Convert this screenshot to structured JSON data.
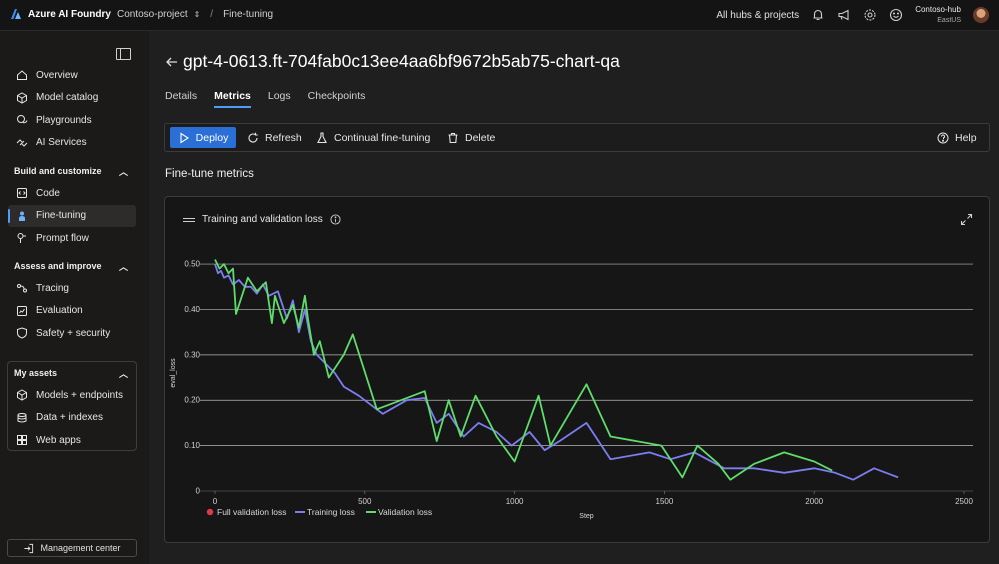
{
  "app": {
    "brand": "Azure AI Foundry",
    "breadcrumb_project": "Contoso-project",
    "breadcrumb_page": "Fine-tuning",
    "all_hubs": "All hubs & projects",
    "hub_name": "Contoso-hub",
    "hub_region": "EastUS"
  },
  "sidebar": {
    "top_items": [
      {
        "label": "Overview",
        "icon": "home-icon"
      },
      {
        "label": "Model catalog",
        "icon": "cube-icon"
      },
      {
        "label": "Playgrounds",
        "icon": "chat-icon"
      },
      {
        "label": "AI Services",
        "icon": "link-icon"
      }
    ],
    "section_build": "Build and customize",
    "build_items": [
      {
        "label": "Code",
        "icon": "code-icon"
      },
      {
        "label": "Fine-tuning",
        "icon": "person-icon",
        "active": true
      },
      {
        "label": "Prompt flow",
        "icon": "flow-icon"
      }
    ],
    "section_assess": "Assess and improve",
    "assess_items": [
      {
        "label": "Tracing",
        "icon": "tracing-icon"
      },
      {
        "label": "Evaluation",
        "icon": "evaluation-icon"
      },
      {
        "label": "Safety + security",
        "icon": "shield-icon"
      }
    ],
    "section_assets": "My assets",
    "asset_items": [
      {
        "label": "Models + endpoints",
        "icon": "cube-icon"
      },
      {
        "label": "Data + indexes",
        "icon": "database-icon"
      },
      {
        "label": "Web apps",
        "icon": "grid-icon"
      }
    ],
    "management_center": "Management center"
  },
  "page": {
    "title": "gpt-4-0613.ft-704fab0c13ee4aa6bf9672b5ab75-chart-qa",
    "tabs": [
      "Details",
      "Metrics",
      "Logs",
      "Checkpoints"
    ],
    "active_tab": "Metrics",
    "toolbar": {
      "deploy": "Deploy",
      "refresh": "Refresh",
      "continual": "Continual fine-tuning",
      "delete": "Delete",
      "help": "Help"
    },
    "section_title": "Fine-tune metrics",
    "chart_title": "Training and validation loss"
  },
  "colors": {
    "accent": "#2a6fd6",
    "training": "#7b7df0",
    "validation": "#5fdc6a",
    "full_validation": "#e03a4a"
  },
  "chart_data": {
    "type": "line",
    "title": "Training and validation loss",
    "xlabel": "Step",
    "ylabel": "eval_loss",
    "xlim": [
      -50,
      2530
    ],
    "ylim": [
      0,
      0.52
    ],
    "x_ticks": [
      "0",
      "500",
      "1000",
      "1500",
      "2000",
      "2500"
    ],
    "y_ticks": [
      "0",
      "0.10",
      "0.20",
      "0.30",
      "0.40",
      "0.50"
    ],
    "grid": "horizontal",
    "legend_position": "bottom-left",
    "legend": [
      "Full validation loss",
      "Training loss",
      "Validation loss"
    ],
    "series": [
      {
        "name": "Training loss",
        "points": [
          [
            0,
            0.5
          ],
          [
            10,
            0.48
          ],
          [
            20,
            0.485
          ],
          [
            30,
            0.47
          ],
          [
            45,
            0.475
          ],
          [
            60,
            0.455
          ],
          [
            80,
            0.465
          ],
          [
            100,
            0.45
          ],
          [
            120,
            0.45
          ],
          [
            140,
            0.435
          ],
          [
            160,
            0.455
          ],
          [
            180,
            0.43
          ],
          [
            210,
            0.44
          ],
          [
            240,
            0.38
          ],
          [
            260,
            0.42
          ],
          [
            280,
            0.35
          ],
          [
            300,
            0.4
          ],
          [
            320,
            0.33
          ],
          [
            340,
            0.3
          ],
          [
            370,
            0.28
          ],
          [
            400,
            0.26
          ],
          [
            430,
            0.23
          ],
          [
            480,
            0.21
          ],
          [
            560,
            0.17
          ],
          [
            640,
            0.2
          ],
          [
            700,
            0.205
          ],
          [
            740,
            0.15
          ],
          [
            780,
            0.17
          ],
          [
            830,
            0.12
          ],
          [
            880,
            0.15
          ],
          [
            940,
            0.13
          ],
          [
            990,
            0.1
          ],
          [
            1050,
            0.13
          ],
          [
            1100,
            0.09
          ],
          [
            1150,
            0.11
          ],
          [
            1240,
            0.15
          ],
          [
            1320,
            0.07
          ],
          [
            1450,
            0.085
          ],
          [
            1520,
            0.07
          ],
          [
            1600,
            0.085
          ],
          [
            1700,
            0.05
          ],
          [
            1800,
            0.05
          ],
          [
            1900,
            0.04
          ],
          [
            2000,
            0.05
          ],
          [
            2070,
            0.04
          ],
          [
            2130,
            0.025
          ],
          [
            2200,
            0.05
          ],
          [
            2280,
            0.03
          ]
        ]
      },
      {
        "name": "Validation loss",
        "points": [
          [
            0,
            0.51
          ],
          [
            15,
            0.49
          ],
          [
            30,
            0.5
          ],
          [
            45,
            0.48
          ],
          [
            60,
            0.49
          ],
          [
            70,
            0.39
          ],
          [
            110,
            0.47
          ],
          [
            140,
            0.44
          ],
          [
            170,
            0.46
          ],
          [
            190,
            0.37
          ],
          [
            200,
            0.43
          ],
          [
            230,
            0.37
          ],
          [
            260,
            0.41
          ],
          [
            280,
            0.36
          ],
          [
            300,
            0.43
          ],
          [
            310,
            0.38
          ],
          [
            320,
            0.34
          ],
          [
            330,
            0.3
          ],
          [
            350,
            0.33
          ],
          [
            380,
            0.25
          ],
          [
            430,
            0.3
          ],
          [
            460,
            0.345
          ],
          [
            540,
            0.18
          ],
          [
            580,
            0.19
          ],
          [
            700,
            0.22
          ],
          [
            740,
            0.11
          ],
          [
            780,
            0.2
          ],
          [
            820,
            0.12
          ],
          [
            870,
            0.21
          ],
          [
            940,
            0.12
          ],
          [
            1000,
            0.065
          ],
          [
            1080,
            0.21
          ],
          [
            1120,
            0.1
          ],
          [
            1240,
            0.235
          ],
          [
            1320,
            0.12
          ],
          [
            1490,
            0.1
          ],
          [
            1560,
            0.03
          ],
          [
            1610,
            0.1
          ],
          [
            1680,
            0.06
          ],
          [
            1720,
            0.025
          ],
          [
            1800,
            0.06
          ],
          [
            1900,
            0.085
          ],
          [
            2000,
            0.065
          ],
          [
            2060,
            0.045
          ]
        ]
      },
      {
        "name": "Full validation loss",
        "points": []
      }
    ]
  }
}
